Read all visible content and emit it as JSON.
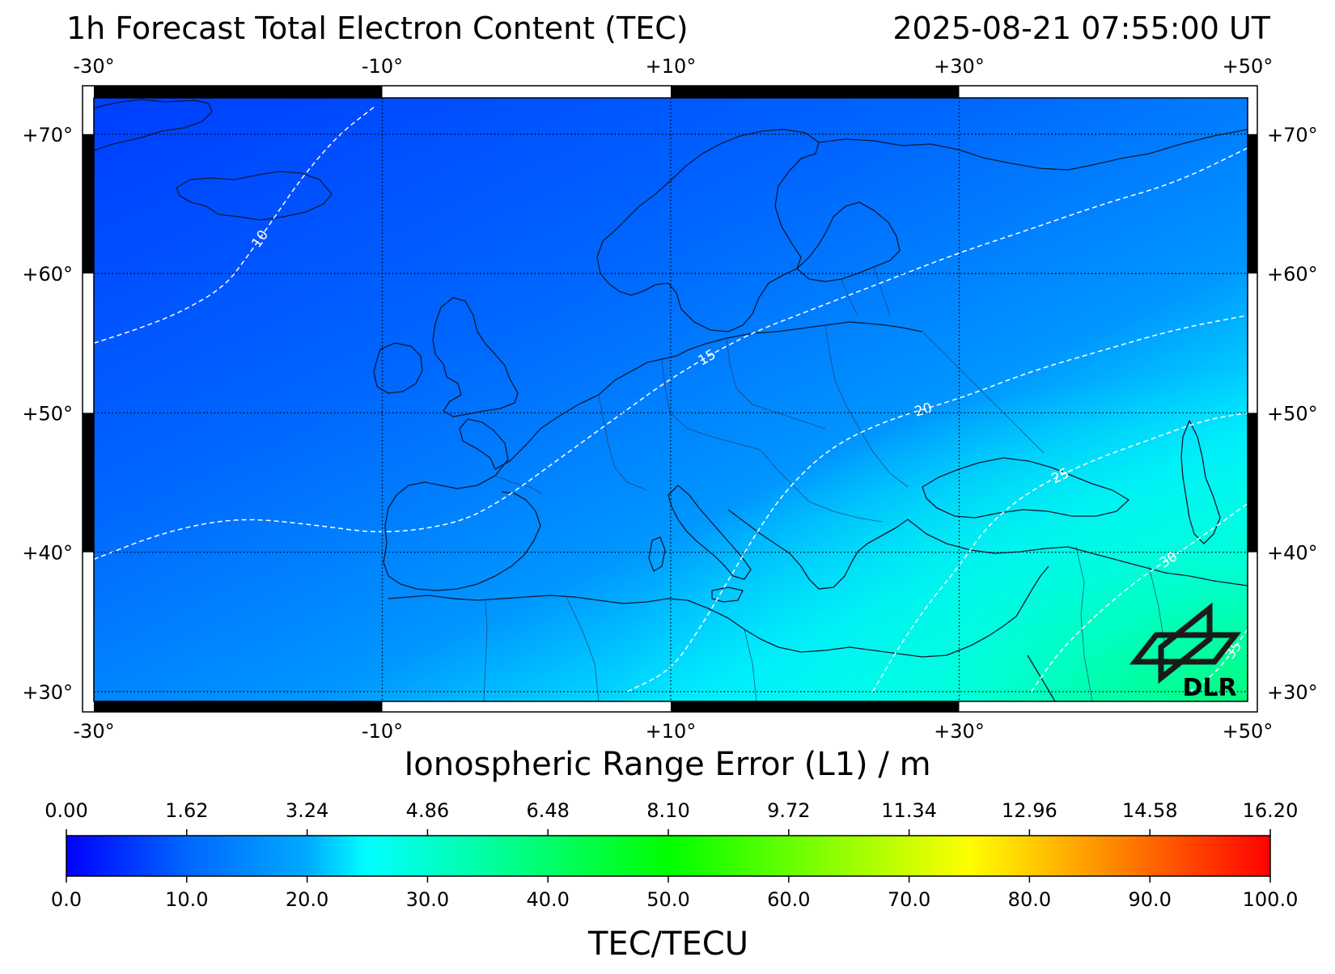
{
  "header": {
    "title": "1h Forecast Total Electron Content (TEC)",
    "timestamp": "2025-08-21 07:55:00 UT"
  },
  "map": {
    "lon_range": [
      -30,
      50
    ],
    "lat_range": [
      29.3,
      72.6
    ],
    "lon_ticks": [
      {
        "value": -30,
        "label": "-30°"
      },
      {
        "value": -10,
        "label": "-10°"
      },
      {
        "value": 10,
        "label": "+10°"
      },
      {
        "value": 30,
        "label": "+30°"
      },
      {
        "value": 50,
        "label": "+50°"
      }
    ],
    "lat_ticks": [
      {
        "value": 30,
        "label": "+30°"
      },
      {
        "value": 40,
        "label": "+40°"
      },
      {
        "value": 50,
        "label": "+50°"
      },
      {
        "value": 60,
        "label": "+60°"
      },
      {
        "value": 70,
        "label": "+70°"
      }
    ],
    "grid": "dotted",
    "logo_text": "DLR"
  },
  "chart_data": {
    "type": "heatmap",
    "title": "1h Forecast Total Electron Content (TEC)",
    "contours": [
      {
        "label": "10",
        "points": [
          [
            -30,
            55.0
          ],
          [
            -27,
            56.0
          ],
          [
            -24,
            57.2
          ],
          [
            -21,
            59.0
          ],
          [
            -19.5,
            61.0
          ],
          [
            -17.5,
            64.0
          ],
          [
            -15.5,
            67.0
          ],
          [
            -13,
            70.0
          ],
          [
            -10.5,
            72.0
          ]
        ]
      },
      {
        "label": "15",
        "points": [
          [
            -30,
            39.5
          ],
          [
            -25,
            41.5
          ],
          [
            -20,
            42.5
          ],
          [
            -15,
            42.0
          ],
          [
            -10,
            41.3
          ],
          [
            -5,
            42.0
          ],
          [
            -2,
            43.5
          ],
          [
            2,
            46.5
          ],
          [
            6,
            49.5
          ],
          [
            10,
            52.5
          ],
          [
            15,
            55.5
          ],
          [
            20,
            57.5
          ],
          [
            25,
            59.5
          ],
          [
            30,
            61.5
          ],
          [
            35,
            63.2
          ],
          [
            40,
            65.0
          ],
          [
            45,
            66.5
          ],
          [
            50,
            69.0
          ]
        ]
      },
      {
        "label": "20",
        "points": [
          [
            7,
            30.0
          ],
          [
            10,
            31.5
          ],
          [
            12,
            34.5
          ],
          [
            14,
            38.0
          ],
          [
            16,
            41.5
          ],
          [
            18,
            44.5
          ],
          [
            21,
            47.5
          ],
          [
            25,
            49.5
          ],
          [
            30,
            51.0
          ],
          [
            35,
            53.0
          ],
          [
            40,
            54.5
          ],
          [
            45,
            56.0
          ],
          [
            50,
            57.0
          ]
        ]
      },
      {
        "label": "25",
        "points": [
          [
            24,
            30.0
          ],
          [
            26,
            33.5
          ],
          [
            28,
            36.5
          ],
          [
            30,
            39.0
          ],
          [
            32,
            42.0
          ],
          [
            35,
            44.5
          ],
          [
            39,
            46.5
          ],
          [
            43,
            48.0
          ],
          [
            47,
            49.5
          ],
          [
            50,
            50.0
          ]
        ]
      },
      {
        "label": "30",
        "points": [
          [
            35,
            30.0
          ],
          [
            37,
            33.0
          ],
          [
            40,
            36.0
          ],
          [
            43,
            38.5
          ],
          [
            46,
            40.5
          ],
          [
            50,
            43.5
          ]
        ]
      },
      {
        "label": "35",
        "points": [
          [
            46,
            30.0
          ],
          [
            48,
            31.5
          ],
          [
            50,
            34.5
          ]
        ]
      }
    ],
    "colorbar": {
      "label_top": "Ionospheric Range Error (L1) / m",
      "label_bottom": "TEC/TECU",
      "range": [
        0,
        100
      ],
      "top_ticks": [
        "0.00",
        "1.62",
        "3.24",
        "4.86",
        "6.48",
        "8.10",
        "9.72",
        "11.34",
        "12.96",
        "14.58",
        "16.20"
      ],
      "bottom_ticks": [
        "0.0",
        "10.0",
        "20.0",
        "30.0",
        "40.0",
        "50.0",
        "60.0",
        "70.0",
        "80.0",
        "90.0",
        "100.0"
      ],
      "stops": [
        {
          "v": 0,
          "color": "#0000ff"
        },
        {
          "v": 10,
          "color": "#0066ff"
        },
        {
          "v": 20,
          "color": "#00aaff"
        },
        {
          "v": 25,
          "color": "#00ffff"
        },
        {
          "v": 35,
          "color": "#00ffa0"
        },
        {
          "v": 50,
          "color": "#00ff00"
        },
        {
          "v": 75,
          "color": "#ffff00"
        },
        {
          "v": 87,
          "color": "#ff8800"
        },
        {
          "v": 100,
          "color": "#ff0000"
        }
      ]
    }
  }
}
